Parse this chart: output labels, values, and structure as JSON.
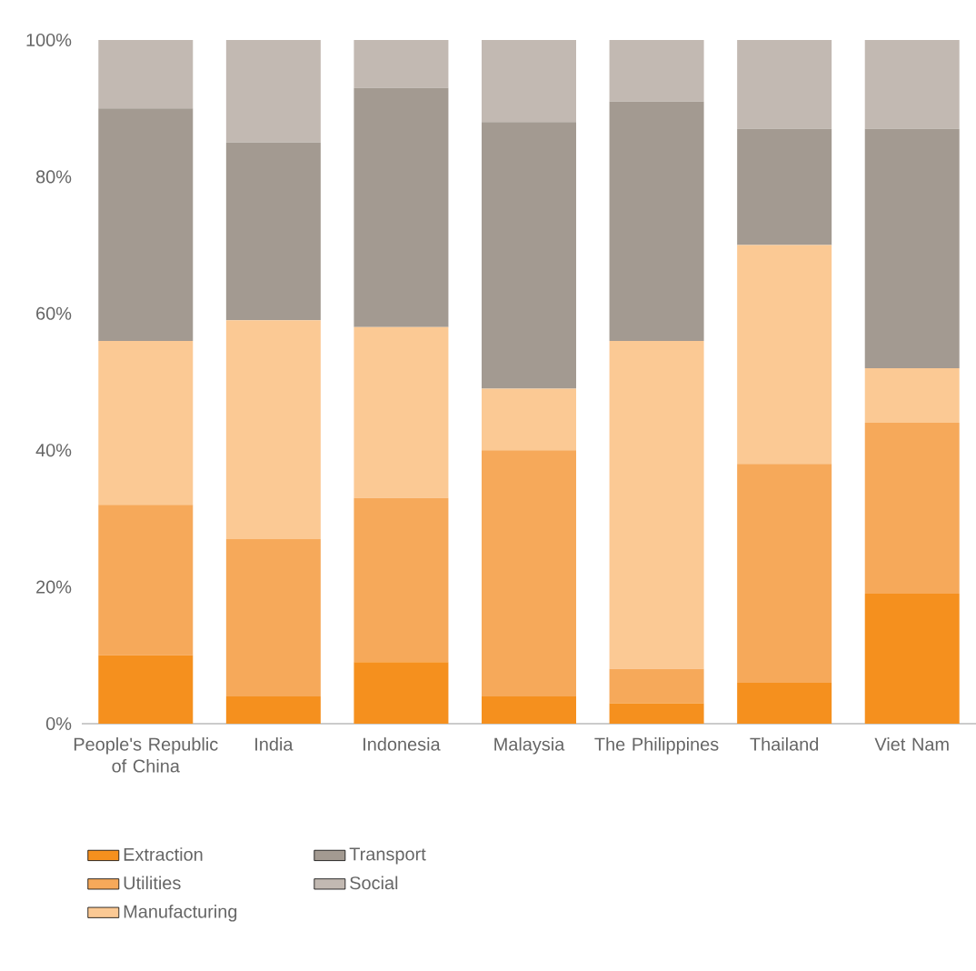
{
  "chart_data": {
    "type": "bar",
    "stacked": true,
    "categories": [
      "People's Republic of China",
      "India",
      "Indonesia",
      "Malaysia",
      "The Philippines",
      "Thailand",
      "Viet Nam"
    ],
    "series": [
      {
        "name": "Extraction",
        "color": "#f5901e",
        "values": [
          10,
          4,
          9,
          4,
          3,
          6,
          19
        ]
      },
      {
        "name": "Utilities",
        "color": "#f6a95a",
        "values": [
          22,
          23,
          24,
          36,
          5,
          32,
          25
        ]
      },
      {
        "name": "Manufacturing",
        "color": "#fbc994",
        "values": [
          24,
          32,
          25,
          9,
          48,
          32,
          8
        ]
      },
      {
        "name": "Transport",
        "color": "#a39a91",
        "values": [
          34,
          26,
          35,
          39,
          35,
          17,
          35
        ]
      },
      {
        "name": "Social",
        "color": "#c2b9b2",
        "values": [
          10,
          15,
          7,
          12,
          9,
          13,
          13
        ]
      }
    ],
    "ylim": [
      0,
      100
    ],
    "yticks": [
      {
        "value": 0,
        "label": "0%"
      },
      {
        "value": 20,
        "label": "20%"
      },
      {
        "value": 40,
        "label": "40%"
      },
      {
        "value": 60,
        "label": "60%"
      },
      {
        "value": 80,
        "label": "80%"
      },
      {
        "value": 100,
        "label": "100%"
      }
    ],
    "legend": "bottom left"
  }
}
